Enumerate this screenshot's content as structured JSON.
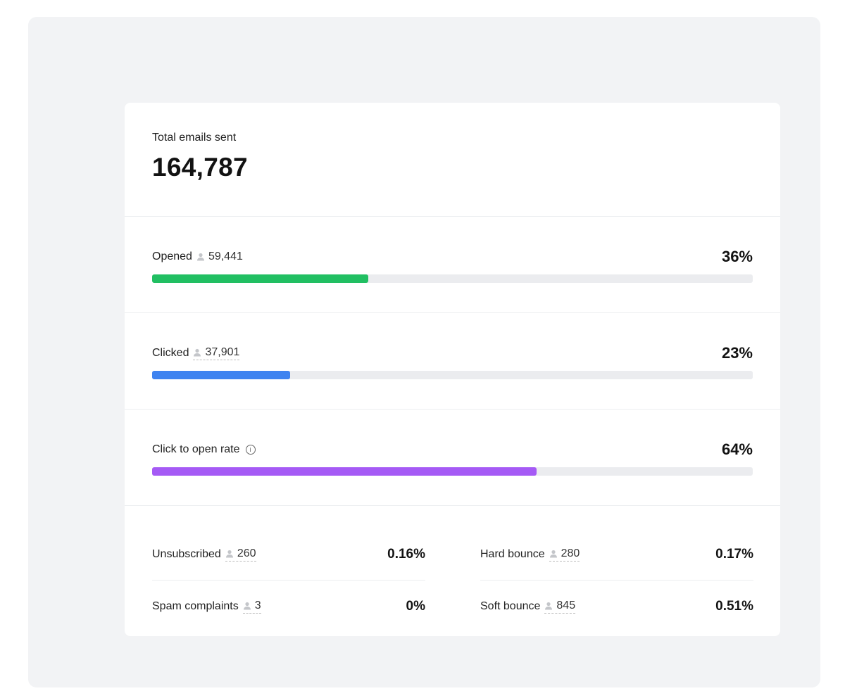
{
  "total": {
    "label": "Total emails sent",
    "value": "164,787"
  },
  "metrics": [
    {
      "label": "Opened",
      "count": "59,441",
      "percent": "36%",
      "fill": 36,
      "color": "#21bf62"
    },
    {
      "label": "Clicked",
      "count": "37,901",
      "percent": "23%",
      "fill": 23,
      "color": "#3f83f0"
    },
    {
      "label": "Click to open rate",
      "info_icon": "info-icon",
      "percent": "64%",
      "fill": 64,
      "color": "#a55af5"
    }
  ],
  "bottom": [
    {
      "label": "Unsubscribed",
      "count": "260",
      "percent": "0.16%"
    },
    {
      "label": "Hard bounce",
      "count": "280",
      "percent": "0.17%"
    },
    {
      "label": "Spam complaints",
      "count": "3",
      "percent": "0%"
    },
    {
      "label": "Soft bounce",
      "count": "845",
      "percent": "0.51%"
    }
  ]
}
